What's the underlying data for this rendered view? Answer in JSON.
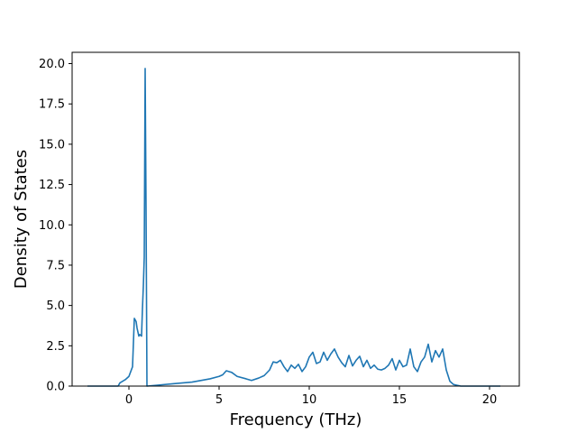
{
  "chart_data": {
    "type": "line",
    "title": "",
    "xlabel": "Frequency (THz)",
    "ylabel": "Density of States",
    "xlim": [
      -3.15,
      21.65
    ],
    "ylim": [
      0,
      20.7
    ],
    "xticks": [
      0,
      5,
      10,
      15,
      20
    ],
    "xtick_labels": [
      "0",
      "5",
      "10",
      "15",
      "20"
    ],
    "yticks": [
      0,
      2.5,
      5,
      7.5,
      10,
      12.5,
      15,
      17.5,
      20
    ],
    "ytick_labels": [
      "0.0",
      "2.5",
      "5.0",
      "7.5",
      "10.0",
      "12.5",
      "15.0",
      "17.5",
      "20.0"
    ],
    "grid": false,
    "legend": "none",
    "line_color": "#1f77b4",
    "series": [
      {
        "x": [
          -2.3,
          -0.6,
          -0.5,
          -0.2,
          0.0,
          0.2,
          0.3,
          0.4,
          0.45,
          0.55,
          0.6,
          0.7,
          0.75,
          0.8,
          0.85,
          0.9,
          0.95,
          1.0,
          1.5,
          2.5,
          3.5,
          4.5,
          5.0,
          5.2,
          5.4,
          5.7,
          6.0,
          6.5,
          6.8,
          7.2,
          7.5,
          7.8,
          8.0,
          8.2,
          8.4,
          8.6,
          8.8,
          9.0,
          9.2,
          9.4,
          9.6,
          9.8,
          10.0,
          10.2,
          10.4,
          10.6,
          10.8,
          11.0,
          11.2,
          11.4,
          11.6,
          11.8,
          12.0,
          12.2,
          12.4,
          12.6,
          12.8,
          13.0,
          13.2,
          13.4,
          13.6,
          13.8,
          14.0,
          14.2,
          14.4,
          14.6,
          14.8,
          15.0,
          15.2,
          15.4,
          15.6,
          15.8,
          16.0,
          16.2,
          16.4,
          16.6,
          16.8,
          17.0,
          17.2,
          17.4,
          17.6,
          17.8,
          18.0,
          18.2,
          18.4,
          18.6,
          18.7,
          18.8,
          20.6
        ],
        "y": [
          0.0,
          0.0,
          0.2,
          0.4,
          0.6,
          1.2,
          4.2,
          4.0,
          3.6,
          3.1,
          3.2,
          3.1,
          4.8,
          6.2,
          8.0,
          19.7,
          11.0,
          0.0,
          0.05,
          0.15,
          0.25,
          0.45,
          0.6,
          0.7,
          0.95,
          0.85,
          0.6,
          0.45,
          0.35,
          0.5,
          0.65,
          1.0,
          1.5,
          1.45,
          1.6,
          1.2,
          0.9,
          1.3,
          1.1,
          1.35,
          0.9,
          1.2,
          1.8,
          2.1,
          1.4,
          1.5,
          2.1,
          1.6,
          2.0,
          2.3,
          1.8,
          1.45,
          1.2,
          1.9,
          1.25,
          1.6,
          1.85,
          1.2,
          1.6,
          1.1,
          1.3,
          1.05,
          1.0,
          1.1,
          1.3,
          1.7,
          1.0,
          1.6,
          1.2,
          1.3,
          2.3,
          1.2,
          0.9,
          1.5,
          1.8,
          2.6,
          1.5,
          2.2,
          1.8,
          2.3,
          1.0,
          0.3,
          0.1,
          0.05,
          0.0,
          0.0,
          0.0,
          0.0,
          0.0
        ]
      }
    ]
  }
}
